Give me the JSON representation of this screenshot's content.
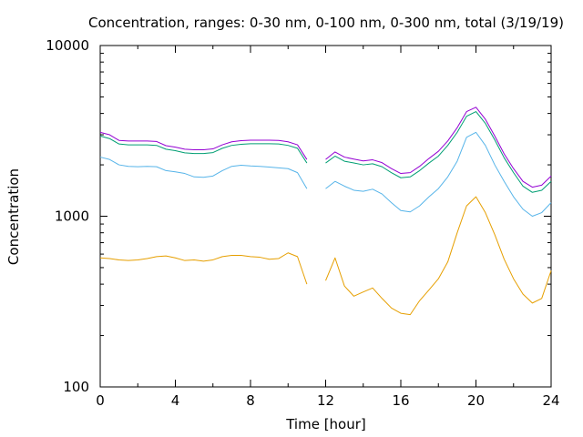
{
  "chart_data": {
    "type": "line",
    "title": "Concentration, ranges: 0-30 nm, 0-100 nm, 0-300 nm, total (3/19/19)",
    "xlabel": "Time [hour]",
    "ylabel": "Concentration",
    "xlim": [
      0,
      24
    ],
    "ylim": [
      100,
      10000
    ],
    "yscale": "log",
    "grid": false,
    "legend": "none",
    "x_ticks": [
      "0",
      "4",
      "8",
      "12",
      "16",
      "20",
      "24"
    ],
    "y_ticks": [
      "100",
      "1000",
      "10000"
    ],
    "x": [
      0,
      0.5,
      1,
      1.5,
      2,
      2.5,
      3,
      3.5,
      4,
      4.5,
      5,
      5.5,
      6,
      6.5,
      7,
      7.5,
      8,
      8.5,
      9,
      9.5,
      10,
      10.5,
      11,
      11.5,
      12,
      12.5,
      13,
      13.5,
      14,
      14.5,
      15,
      15.5,
      16,
      16.5,
      17,
      17.5,
      18,
      18.5,
      19,
      19.5,
      20,
      20.5,
      21,
      21.5,
      22,
      22.5,
      23,
      23.5,
      24
    ],
    "series": [
      {
        "color": "#e69f00",
        "values": [
          570,
          565,
          555,
          550,
          555,
          565,
          580,
          585,
          570,
          550,
          555,
          545,
          555,
          580,
          590,
          590,
          580,
          575,
          560,
          565,
          610,
          580,
          400,
          null,
          420,
          570,
          390,
          340,
          360,
          380,
          330,
          290,
          270,
          265,
          320,
          370,
          430,
          540,
          800,
          1150,
          1300,
          1050,
          780,
          560,
          430,
          350,
          310,
          330,
          480
        ]
      },
      {
        "color": "#56b4e9",
        "values": [
          2220,
          2150,
          2000,
          1960,
          1950,
          1960,
          1950,
          1850,
          1820,
          1780,
          1700,
          1690,
          1720,
          1850,
          1960,
          1990,
          1970,
          1960,
          1940,
          1920,
          1900,
          1800,
          1450,
          null,
          1450,
          1600,
          1500,
          1420,
          1400,
          1440,
          1350,
          1200,
          1080,
          1060,
          1150,
          1300,
          1450,
          1700,
          2100,
          2900,
          3100,
          2600,
          2000,
          1600,
          1300,
          1100,
          1000,
          1050,
          1200
        ]
      },
      {
        "color": "#009e73",
        "values": [
          2950,
          2850,
          2650,
          2620,
          2620,
          2620,
          2600,
          2470,
          2420,
          2350,
          2330,
          2330,
          2360,
          2500,
          2600,
          2640,
          2660,
          2660,
          2660,
          2650,
          2600,
          2500,
          2050,
          null,
          2050,
          2250,
          2100,
          2050,
          2000,
          2030,
          1950,
          1800,
          1680,
          1700,
          1850,
          2050,
          2250,
          2600,
          3100,
          3850,
          4100,
          3500,
          2800,
          2200,
          1800,
          1500,
          1380,
          1420,
          1600
        ]
      },
      {
        "color": "#9400d3",
        "values": [
          3100,
          3000,
          2780,
          2760,
          2760,
          2760,
          2740,
          2590,
          2540,
          2470,
          2450,
          2450,
          2480,
          2620,
          2730,
          2770,
          2790,
          2790,
          2790,
          2780,
          2730,
          2620,
          2150,
          null,
          2150,
          2380,
          2220,
          2160,
          2110,
          2140,
          2060,
          1900,
          1780,
          1800,
          1960,
          2180,
          2400,
          2760,
          3300,
          4100,
          4350,
          3700,
          2950,
          2320,
          1900,
          1600,
          1480,
          1520,
          1720
        ]
      }
    ]
  }
}
